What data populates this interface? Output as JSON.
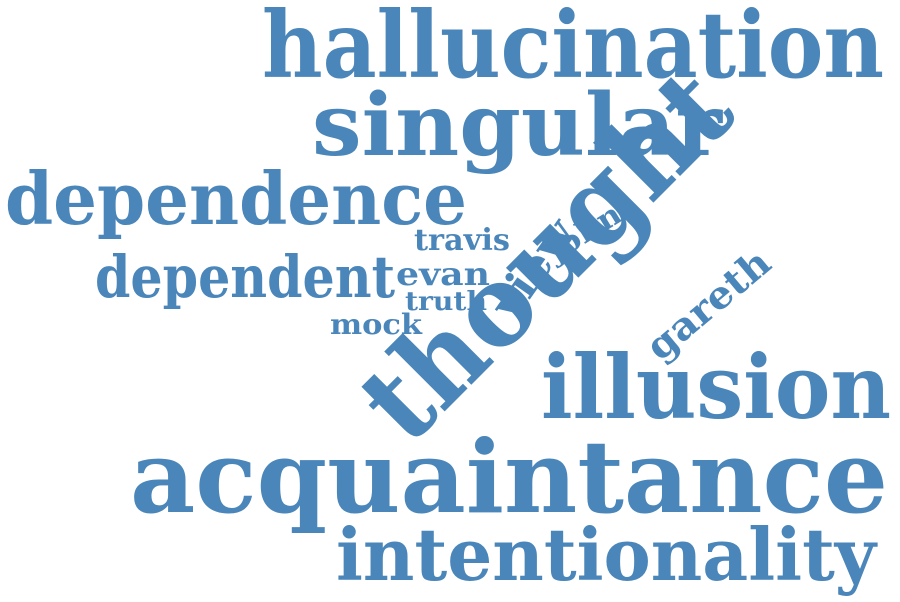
{
  "word_color": "#4a86b9",
  "words": [
    {
      "text": "hallucination",
      "orientation": "horizontal"
    },
    {
      "text": "singular",
      "orientation": "horizontal"
    },
    {
      "text": "thought",
      "orientation": "rotated"
    },
    {
      "text": "dependence",
      "orientation": "horizontal"
    },
    {
      "text": "dependent",
      "orientation": "horizontal"
    },
    {
      "text": "view",
      "orientation": "rotated"
    },
    {
      "text": "john",
      "orientation": "rotated"
    },
    {
      "text": "travis",
      "orientation": "horizontal"
    },
    {
      "text": "evan",
      "orientation": "horizontal"
    },
    {
      "text": "truth",
      "orientation": "horizontal"
    },
    {
      "text": "mock",
      "orientation": "horizontal"
    },
    {
      "text": "gareth",
      "orientation": "rotated"
    },
    {
      "text": "illusion",
      "orientation": "horizontal"
    },
    {
      "text": "acquaintance",
      "orientation": "horizontal"
    },
    {
      "text": "intentionality",
      "orientation": "horizontal"
    }
  ]
}
